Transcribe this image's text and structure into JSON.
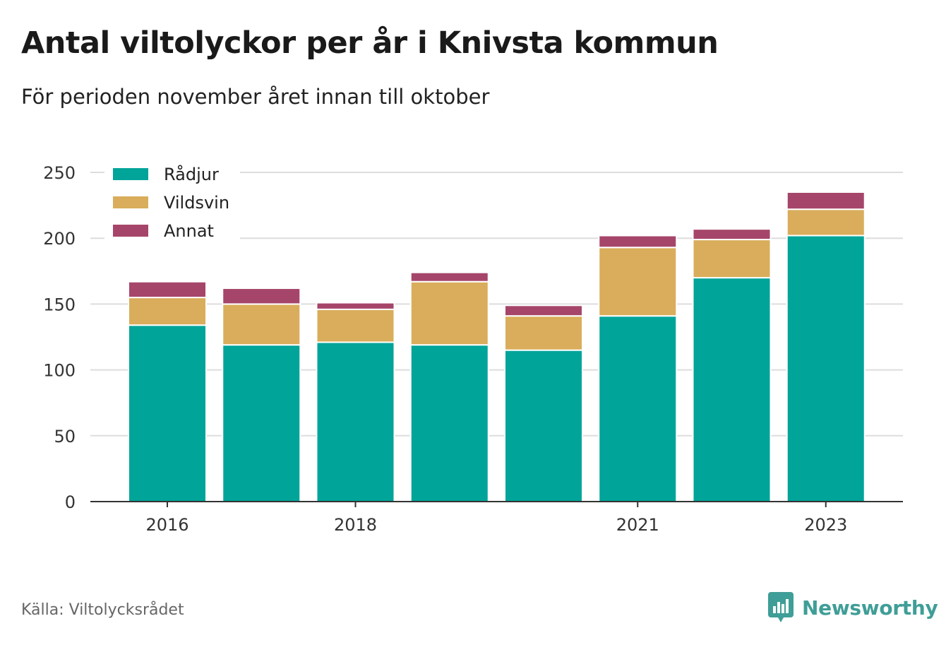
{
  "title": "Antal viltolyckor per år i Knivsta kommun",
  "subtitle": "För perioden november året innan till oktober",
  "source": "Källa: Viltolycksrådet",
  "brand": "Newsworthy",
  "colors": {
    "radjur": "#00a499",
    "vildsvin": "#d9ad5b",
    "annat": "#a6456a",
    "brand": "#3f9e97"
  },
  "chart_data": {
    "type": "bar",
    "stacked": true,
    "categories": [
      "2016",
      "2017",
      "2018",
      "2019",
      "2020",
      "2021",
      "2022",
      "2023"
    ],
    "tick_labels": [
      "2016",
      "",
      "2018",
      "",
      "",
      "2021",
      "",
      "2023"
    ],
    "series": [
      {
        "name": "Rådjur",
        "color": "#00a499",
        "values": [
          134,
          119,
          121,
          119,
          115,
          141,
          170,
          202
        ]
      },
      {
        "name": "Vildsvin",
        "color": "#d9ad5b",
        "values": [
          21,
          31,
          25,
          48,
          26,
          52,
          29,
          20
        ]
      },
      {
        "name": "Annat",
        "color": "#a6456a",
        "values": [
          12,
          12,
          5,
          7,
          8,
          9,
          8,
          13
        ]
      }
    ],
    "ylim": [
      0,
      250
    ],
    "yticks": [
      0,
      50,
      100,
      150,
      200,
      250
    ],
    "grid": true,
    "legend_position": "top-left",
    "xlabel": "",
    "ylabel": ""
  }
}
